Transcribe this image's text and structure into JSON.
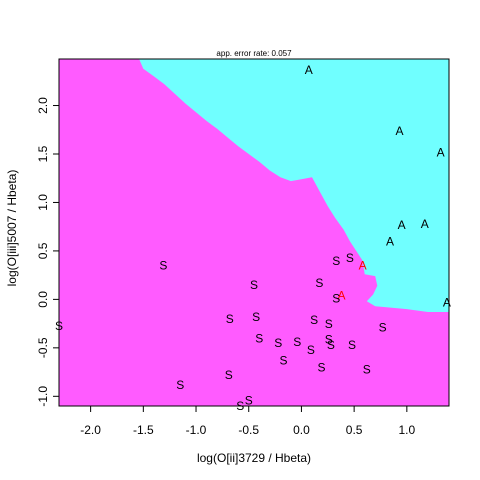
{
  "chart_data": {
    "type": "scatter",
    "title": "app. error rate: 0.057",
    "xlabel": "log(O[ii]3729 / Hbeta)",
    "ylabel": "log(O[iii]5007 / Hbeta)",
    "xlim": [
      -2.3,
      1.4
    ],
    "ylim": [
      -1.1,
      2.48
    ],
    "x_ticks": [
      -2.0,
      -1.5,
      -1.0,
      -0.5,
      0.0,
      0.5,
      1.0
    ],
    "x_tick_labels": [
      "-2.0",
      "-1.5",
      "-1.0",
      "-0.5",
      "0.0",
      "0.5",
      "1.0"
    ],
    "y_ticks": [
      -1.0,
      -0.5,
      0.0,
      0.5,
      1.0,
      1.5,
      2.0
    ],
    "y_tick_labels": [
      "-1.0",
      "-0.5",
      "0.0",
      "0.5",
      "1.0",
      "1.5",
      "2.0"
    ],
    "grid": false,
    "region_colors": {
      "S": "#ff5bff",
      "A": "#70ffff"
    },
    "point_colors": {
      "correct": "#000000",
      "misclassified": "#ff0000"
    },
    "boundary": [
      [
        -1.54,
        2.48
      ],
      [
        -1.5,
        2.38
      ],
      [
        -1.4,
        2.3
      ],
      [
        -1.3,
        2.22
      ],
      [
        -1.2,
        2.12
      ],
      [
        -1.1,
        2.02
      ],
      [
        -1.0,
        1.93
      ],
      [
        -0.9,
        1.84
      ],
      [
        -0.8,
        1.76
      ],
      [
        -0.7,
        1.67
      ],
      [
        -0.6,
        1.58
      ],
      [
        -0.5,
        1.5
      ],
      [
        -0.4,
        1.42
      ],
      [
        -0.3,
        1.33
      ],
      [
        -0.2,
        1.26
      ],
      [
        -0.1,
        1.22
      ],
      [
        0.0,
        1.24
      ],
      [
        0.1,
        1.26
      ],
      [
        0.18,
        1.1
      ],
      [
        0.25,
        0.96
      ],
      [
        0.32,
        0.84
      ],
      [
        0.4,
        0.72
      ],
      [
        0.46,
        0.6
      ],
      [
        0.52,
        0.5
      ],
      [
        0.58,
        0.4
      ],
      [
        0.6,
        0.26
      ],
      [
        0.7,
        0.24
      ],
      [
        0.72,
        0.14
      ],
      [
        0.68,
        0.05
      ],
      [
        0.62,
        -0.02
      ],
      [
        0.7,
        -0.07
      ],
      [
        1.0,
        -0.1
      ],
      [
        1.2,
        -0.13
      ],
      [
        1.4,
        -0.13
      ]
    ],
    "points": [
      {
        "x": 0.07,
        "y": 2.37,
        "label": "A",
        "misclassified": false
      },
      {
        "x": 0.93,
        "y": 1.74,
        "label": "A",
        "misclassified": false
      },
      {
        "x": 1.32,
        "y": 1.52,
        "label": "A",
        "misclassified": false
      },
      {
        "x": 0.95,
        "y": 0.77,
        "label": "A",
        "misclassified": false
      },
      {
        "x": 1.17,
        "y": 0.78,
        "label": "A",
        "misclassified": false
      },
      {
        "x": 0.84,
        "y": 0.6,
        "label": "A",
        "misclassified": false
      },
      {
        "x": 1.38,
        "y": -0.03,
        "label": "A",
        "misclassified": false
      },
      {
        "x": 0.58,
        "y": 0.35,
        "label": "A",
        "misclassified": true
      },
      {
        "x": 0.38,
        "y": 0.04,
        "label": "A",
        "misclassified": true
      },
      {
        "x": -1.31,
        "y": 0.35,
        "label": "S",
        "misclassified": false
      },
      {
        "x": -2.3,
        "y": -0.27,
        "label": "S",
        "misclassified": false
      },
      {
        "x": -0.45,
        "y": 0.15,
        "label": "S",
        "misclassified": false
      },
      {
        "x": -0.68,
        "y": -0.2,
        "label": "S",
        "misclassified": false
      },
      {
        "x": -0.43,
        "y": -0.18,
        "label": "S",
        "misclassified": false
      },
      {
        "x": -0.4,
        "y": -0.4,
        "label": "S",
        "misclassified": false
      },
      {
        "x": -0.22,
        "y": -0.45,
        "label": "S",
        "misclassified": false
      },
      {
        "x": -0.04,
        "y": -0.44,
        "label": "S",
        "misclassified": false
      },
      {
        "x": -0.17,
        "y": -0.63,
        "label": "S",
        "misclassified": false
      },
      {
        "x": 0.09,
        "y": -0.52,
        "label": "S",
        "misclassified": false
      },
      {
        "x": 0.12,
        "y": -0.21,
        "label": "S",
        "misclassified": false
      },
      {
        "x": 0.26,
        "y": -0.25,
        "label": "S",
        "misclassified": false
      },
      {
        "x": 0.26,
        "y": -0.41,
        "label": "S",
        "misclassified": false
      },
      {
        "x": 0.28,
        "y": -0.47,
        "label": "S",
        "misclassified": false
      },
      {
        "x": 0.19,
        "y": -0.7,
        "label": "S",
        "misclassified": false
      },
      {
        "x": 0.48,
        "y": -0.47,
        "label": "S",
        "misclassified": false
      },
      {
        "x": 0.62,
        "y": -0.72,
        "label": "S",
        "misclassified": false
      },
      {
        "x": 0.77,
        "y": -0.29,
        "label": "S",
        "misclassified": false
      },
      {
        "x": 0.17,
        "y": 0.17,
        "label": "S",
        "misclassified": false
      },
      {
        "x": 0.33,
        "y": 0.01,
        "label": "S",
        "misclassified": false
      },
      {
        "x": 0.33,
        "y": 0.4,
        "label": "S",
        "misclassified": false
      },
      {
        "x": 0.46,
        "y": 0.43,
        "label": "S",
        "misclassified": false
      },
      {
        "x": -1.15,
        "y": -0.88,
        "label": "S",
        "misclassified": false
      },
      {
        "x": -0.69,
        "y": -0.78,
        "label": "S",
        "misclassified": false
      },
      {
        "x": -0.5,
        "y": -1.04,
        "label": "S",
        "misclassified": false
      },
      {
        "x": -0.58,
        "y": -1.1,
        "label": "S",
        "misclassified": false
      }
    ]
  }
}
